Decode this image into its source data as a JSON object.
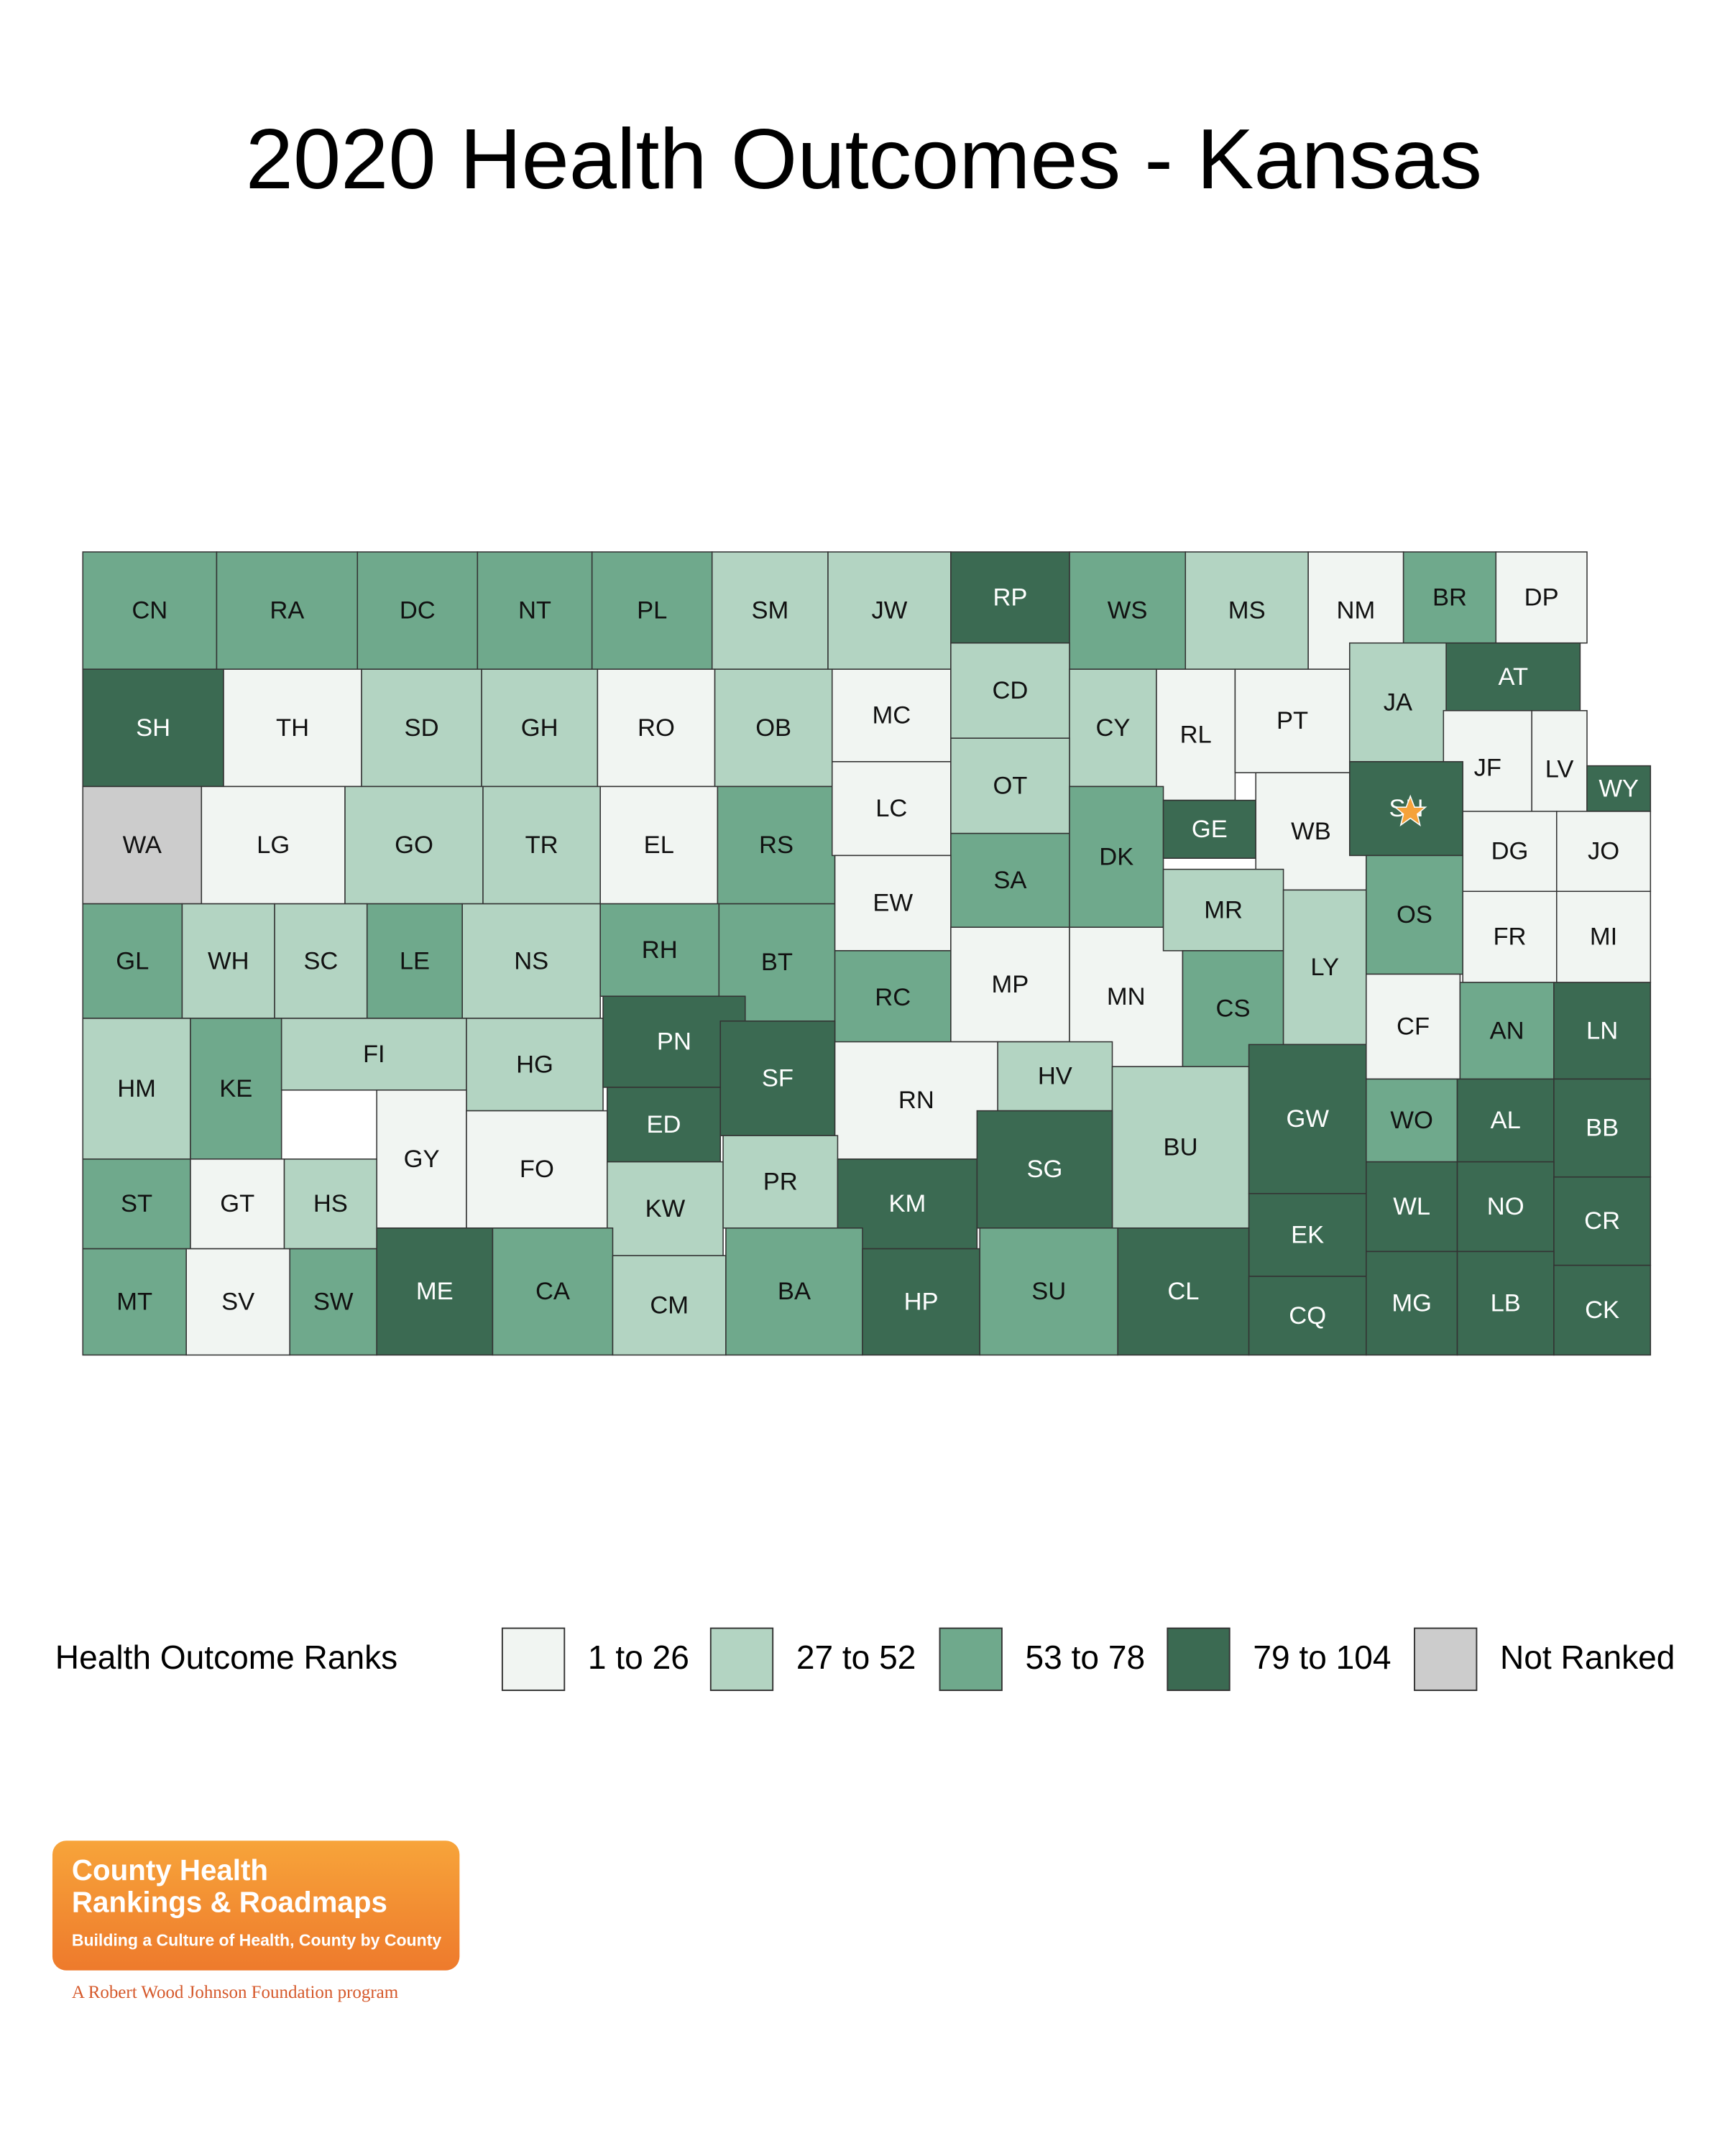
{
  "title": "2020 Health Outcomes - Kansas",
  "counties": [
    {
      "label": "CN",
      "color": "#6fa98c"
    },
    {
      "label": "RA",
      "color": "#6fa98c"
    },
    {
      "label": "DC",
      "color": "#6fa98c"
    },
    {
      "label": "NT",
      "color": "#6fa98c"
    },
    {
      "label": "PL",
      "color": "#6fa98c"
    },
    {
      "label": "SM",
      "color": "#b3d4c2"
    },
    {
      "label": "JW",
      "color": "#b3d4c2"
    },
    {
      "label": "RP",
      "color": "#3b6a52"
    },
    {
      "label": "WS",
      "color": "#6fa98c"
    },
    {
      "label": "MS",
      "color": "#b3d4c2"
    },
    {
      "label": "NM",
      "color": "#f1f5f2"
    },
    {
      "label": "BR",
      "color": "#6fa98c"
    },
    {
      "label": "DP",
      "color": "#f1f5f2"
    },
    {
      "label": "SH",
      "color": "#3b6a52"
    },
    {
      "label": "TH",
      "color": "#f1f5f2"
    },
    {
      "label": "SD",
      "color": "#b3d4c2"
    },
    {
      "label": "GH",
      "color": "#b3d4c2"
    },
    {
      "label": "RO",
      "color": "#f1f5f2"
    },
    {
      "label": "OB",
      "color": "#b3d4c2"
    },
    {
      "label": "MC",
      "color": "#f1f5f2"
    },
    {
      "label": "CD",
      "color": "#b3d4c2"
    },
    {
      "label": "CY",
      "color": "#b3d4c2"
    },
    {
      "label": "RL",
      "color": "#f1f5f2"
    },
    {
      "label": "PT",
      "color": "#f1f5f2"
    },
    {
      "label": "JA",
      "color": "#b3d4c2"
    },
    {
      "label": "AT",
      "color": "#3b6a52"
    },
    {
      "label": "JF",
      "color": "#f1f5f2"
    },
    {
      "label": "LV",
      "color": "#f1f5f2"
    },
    {
      "label": "WY",
      "color": "#3b6a52"
    },
    {
      "label": "WA",
      "color": "#cccccc"
    },
    {
      "label": "LG",
      "color": "#f1f5f2"
    },
    {
      "label": "GO",
      "color": "#b3d4c2"
    },
    {
      "label": "TR",
      "color": "#b3d4c2"
    },
    {
      "label": "EL",
      "color": "#f1f5f2"
    },
    {
      "label": "RS",
      "color": "#6fa98c"
    },
    {
      "label": "LC",
      "color": "#f1f5f2"
    },
    {
      "label": "OT",
      "color": "#b3d4c2"
    },
    {
      "label": "SA",
      "color": "#6fa98c"
    },
    {
      "label": "DK",
      "color": "#6fa98c"
    },
    {
      "label": "GE",
      "color": "#3b6a52"
    },
    {
      "label": "WB",
      "color": "#f1f5f2"
    },
    {
      "label": "SN",
      "color": "#3b6a52"
    },
    {
      "label": "DG",
      "color": "#f1f5f2"
    },
    {
      "label": "JO",
      "color": "#f1f5f2"
    },
    {
      "label": "GL",
      "color": "#6fa98c"
    },
    {
      "label": "WH",
      "color": "#b3d4c2"
    },
    {
      "label": "SC",
      "color": "#b3d4c2"
    },
    {
      "label": "LE",
      "color": "#6fa98c"
    },
    {
      "label": "NS",
      "color": "#b3d4c2"
    },
    {
      "label": "RH",
      "color": "#6fa98c"
    },
    {
      "label": "BT",
      "color": "#6fa98c"
    },
    {
      "label": "EW",
      "color": "#f1f5f2"
    },
    {
      "label": "RC",
      "color": "#6fa98c"
    },
    {
      "label": "MP",
      "color": "#f1f5f2"
    },
    {
      "label": "MN",
      "color": "#f1f5f2"
    },
    {
      "label": "MR",
      "color": "#b3d4c2"
    },
    {
      "label": "CS",
      "color": "#6fa98c"
    },
    {
      "label": "LY",
      "color": "#b3d4c2"
    },
    {
      "label": "OS",
      "color": "#6fa98c"
    },
    {
      "label": "FR",
      "color": "#f1f5f2"
    },
    {
      "label": "MI",
      "color": "#f1f5f2"
    },
    {
      "label": "HM",
      "color": "#b3d4c2"
    },
    {
      "label": "KE",
      "color": "#6fa98c"
    },
    {
      "label": "FI",
      "color": "#b3d4c2"
    },
    {
      "label": "HG",
      "color": "#b3d4c2"
    },
    {
      "label": "PN",
      "color": "#3b6a52"
    },
    {
      "label": "SF",
      "color": "#3b6a52"
    },
    {
      "label": "ED",
      "color": "#3b6a52"
    },
    {
      "label": "RN",
      "color": "#f1f5f2"
    },
    {
      "label": "HV",
      "color": "#b3d4c2"
    },
    {
      "label": "GY",
      "color": "#f1f5f2"
    },
    {
      "label": "FO",
      "color": "#f1f5f2"
    },
    {
      "label": "BU",
      "color": "#b3d4c2"
    },
    {
      "label": "GW",
      "color": "#3b6a52"
    },
    {
      "label": "CF",
      "color": "#f1f5f2"
    },
    {
      "label": "AN",
      "color": "#6fa98c"
    },
    {
      "label": "LN",
      "color": "#3b6a52"
    },
    {
      "label": "WO",
      "color": "#6fa98c"
    },
    {
      "label": "AL",
      "color": "#3b6a52"
    },
    {
      "label": "BB",
      "color": "#3b6a52"
    },
    {
      "label": "ST",
      "color": "#6fa98c"
    },
    {
      "label": "GT",
      "color": "#f1f5f2"
    },
    {
      "label": "HS",
      "color": "#b3d4c2"
    },
    {
      "label": "KW",
      "color": "#b3d4c2"
    },
    {
      "label": "PR",
      "color": "#b3d4c2"
    },
    {
      "label": "KM",
      "color": "#3b6a52"
    },
    {
      "label": "SG",
      "color": "#3b6a52"
    },
    {
      "label": "EK",
      "color": "#3b6a52"
    },
    {
      "label": "WL",
      "color": "#3b6a52"
    },
    {
      "label": "NO",
      "color": "#3b6a52"
    },
    {
      "label": "CR",
      "color": "#3b6a52"
    },
    {
      "label": "MT",
      "color": "#6fa98c"
    },
    {
      "label": "SV",
      "color": "#f1f5f2"
    },
    {
      "label": "SW",
      "color": "#6fa98c"
    },
    {
      "label": "ME",
      "color": "#3b6a52"
    },
    {
      "label": "CA",
      "color": "#6fa98c"
    },
    {
      "label": "CM",
      "color": "#b3d4c2"
    },
    {
      "label": "BA",
      "color": "#6fa98c"
    },
    {
      "label": "HP",
      "color": "#3b6a52"
    },
    {
      "label": "SU",
      "color": "#6fa98c"
    },
    {
      "label": "CL",
      "color": "#3b6a52"
    },
    {
      "label": "CQ",
      "color": "#3b6a52"
    },
    {
      "label": "MG",
      "color": "#3b6a52"
    },
    {
      "label": "LB",
      "color": "#3b6a52"
    },
    {
      "label": "CK",
      "color": "#3b6a52"
    }
  ],
  "legend": {
    "title": "Health Outcome Ranks",
    "items": [
      {
        "label": "1 to 26",
        "color": "#f1f5f2"
      },
      {
        "label": "27 to 52",
        "color": "#b3d4c2"
      },
      {
        "label": "53 to 78",
        "color": "#6fa98c"
      },
      {
        "label": "79 to 104",
        "color": "#3b6a52"
      },
      {
        "label": "Not Ranked",
        "color": "#cccccc"
      }
    ]
  },
  "logo": {
    "line1": "County Health",
    "line2": "Rankings & Roadmaps",
    "tagline": "Building a Culture of Health, County by County",
    "sponsor": "A Robert Wood Johnson Foundation program"
  }
}
